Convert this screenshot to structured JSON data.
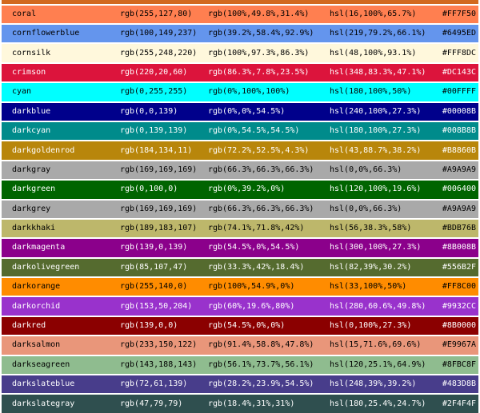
{
  "table": {
    "top_partial_row_color": "#D2691E",
    "rows": [
      {
        "name": "coral",
        "rgb": "rgb(255,127,80)",
        "rgb_percent": "rgb(100%,49.8%,31.4%)",
        "hsl": "hsl(16,100%,65.7%)",
        "hex": "#FF7F50",
        "fg": "#000000"
      },
      {
        "name": "cornflowerblue",
        "rgb": "rgb(100,149,237)",
        "rgb_percent": "rgb(39.2%,58.4%,92.9%)",
        "hsl": "hsl(219,79.2%,66.1%)",
        "hex": "#6495ED",
        "fg": "#000000"
      },
      {
        "name": "cornsilk",
        "rgb": "rgb(255,248,220)",
        "rgb_percent": "rgb(100%,97.3%,86.3%)",
        "hsl": "hsl(48,100%,93.1%)",
        "hex": "#FFF8DC",
        "fg": "#000000"
      },
      {
        "name": "crimson",
        "rgb": "rgb(220,20,60)",
        "rgb_percent": "rgb(86.3%,7.8%,23.5%)",
        "hsl": "hsl(348,83.3%,47.1%)",
        "hex": "#DC143C",
        "fg": "#ffffff"
      },
      {
        "name": "cyan",
        "rgb": "rgb(0,255,255)",
        "rgb_percent": "rgb(0%,100%,100%)",
        "hsl": "hsl(180,100%,50%)",
        "hex": "#00FFFF",
        "fg": "#000000"
      },
      {
        "name": "darkblue",
        "rgb": "rgb(0,0,139)",
        "rgb_percent": "rgb(0%,0%,54.5%)",
        "hsl": "hsl(240,100%,27.3%)",
        "hex": "#00008B",
        "fg": "#ffffff"
      },
      {
        "name": "darkcyan",
        "rgb": "rgb(0,139,139)",
        "rgb_percent": "rgb(0%,54.5%,54.5%)",
        "hsl": "hsl(180,100%,27.3%)",
        "hex": "#008B8B",
        "fg": "#ffffff"
      },
      {
        "name": "darkgoldenrod",
        "rgb": "rgb(184,134,11)",
        "rgb_percent": "rgb(72.2%,52.5%,4.3%)",
        "hsl": "hsl(43,88.7%,38.2%)",
        "hex": "#B8860B",
        "fg": "#ffffff"
      },
      {
        "name": "darkgray",
        "rgb": "rgb(169,169,169)",
        "rgb_percent": "rgb(66.3%,66.3%,66.3%)",
        "hsl": "hsl(0,0%,66.3%)",
        "hex": "#A9A9A9",
        "fg": "#000000"
      },
      {
        "name": "darkgreen",
        "rgb": "rgb(0,100,0)",
        "rgb_percent": "rgb(0%,39.2%,0%)",
        "hsl": "hsl(120,100%,19.6%)",
        "hex": "#006400",
        "fg": "#ffffff"
      },
      {
        "name": "darkgrey",
        "rgb": "rgb(169,169,169)",
        "rgb_percent": "rgb(66.3%,66.3%,66.3%)",
        "hsl": "hsl(0,0%,66.3%)",
        "hex": "#A9A9A9",
        "fg": "#000000"
      },
      {
        "name": "darkkhaki",
        "rgb": "rgb(189,183,107)",
        "rgb_percent": "rgb(74.1%,71.8%,42%)",
        "hsl": "hsl(56,38.3%,58%)",
        "hex": "#BDB76B",
        "fg": "#000000"
      },
      {
        "name": "darkmagenta",
        "rgb": "rgb(139,0,139)",
        "rgb_percent": "rgb(54.5%,0%,54.5%)",
        "hsl": "hsl(300,100%,27.3%)",
        "hex": "#8B008B",
        "fg": "#ffffff"
      },
      {
        "name": "darkolivegreen",
        "rgb": "rgb(85,107,47)",
        "rgb_percent": "rgb(33.3%,42%,18.4%)",
        "hsl": "hsl(82,39%,30.2%)",
        "hex": "#556B2F",
        "fg": "#ffffff"
      },
      {
        "name": "darkorange",
        "rgb": "rgb(255,140,0)",
        "rgb_percent": "rgb(100%,54.9%,0%)",
        "hsl": "hsl(33,100%,50%)",
        "hex": "#FF8C00",
        "fg": "#000000"
      },
      {
        "name": "darkorchid",
        "rgb": "rgb(153,50,204)",
        "rgb_percent": "rgb(60%,19.6%,80%)",
        "hsl": "hsl(280,60.6%,49.8%)",
        "hex": "#9932CC",
        "fg": "#ffffff"
      },
      {
        "name": "darkred",
        "rgb": "rgb(139,0,0)",
        "rgb_percent": "rgb(54.5%,0%,0%)",
        "hsl": "hsl(0,100%,27.3%)",
        "hex": "#8B0000",
        "fg": "#ffffff"
      },
      {
        "name": "darksalmon",
        "rgb": "rgb(233,150,122)",
        "rgb_percent": "rgb(91.4%,58.8%,47.8%)",
        "hsl": "hsl(15,71.6%,69.6%)",
        "hex": "#E9967A",
        "fg": "#000000"
      },
      {
        "name": "darkseagreen",
        "rgb": "rgb(143,188,143)",
        "rgb_percent": "rgb(56.1%,73.7%,56.1%)",
        "hsl": "hsl(120,25.1%,64.9%)",
        "hex": "#8FBC8F",
        "fg": "#000000"
      },
      {
        "name": "darkslateblue",
        "rgb": "rgb(72,61,139)",
        "rgb_percent": "rgb(28.2%,23.9%,54.5%)",
        "hsl": "hsl(248,39%,39.2%)",
        "hex": "#483D8B",
        "fg": "#ffffff"
      },
      {
        "name": "darkslategray",
        "rgb": "rgb(47,79,79)",
        "rgb_percent": "rgb(18.4%,31%,31%)",
        "hsl": "hsl(180,25.4%,24.7%)",
        "hex": "#2F4F4F",
        "fg": "#ffffff"
      }
    ]
  }
}
